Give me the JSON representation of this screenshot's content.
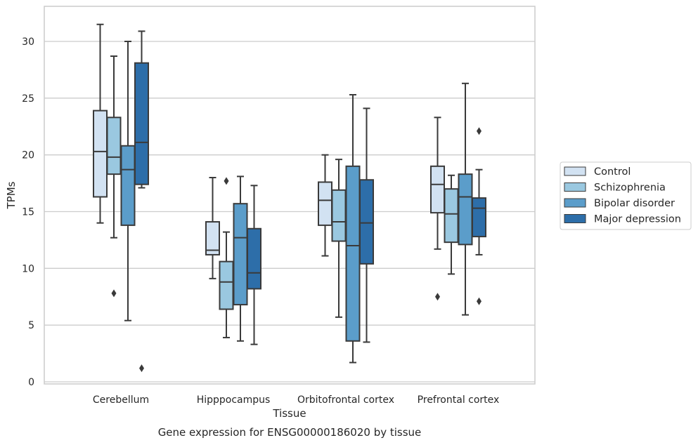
{
  "caption": "Gene expression for ENSG00000186020 by tissue",
  "chart_data": {
    "type": "box",
    "title": "",
    "xlabel": "Tissue",
    "ylabel": "TPMs",
    "ylim": [
      -0.3,
      33
    ],
    "yticks": [
      0,
      5,
      10,
      15,
      20,
      25,
      30
    ],
    "grid": "horizontal",
    "legend_position": "right",
    "categories": [
      "Cerebellum",
      "Hipppocampus",
      "Orbitofrontal cortex",
      "Prefrontal cortex"
    ],
    "series": [
      {
        "name": "Control",
        "color": "#d2e2f2",
        "boxes": [
          {
            "whislo": 14.0,
            "q1": 16.3,
            "med": 20.3,
            "q3": 23.9,
            "whishi": 31.5,
            "fliers": []
          },
          {
            "whislo": 9.1,
            "q1": 11.2,
            "med": 11.6,
            "q3": 14.1,
            "whishi": 18.0,
            "fliers": []
          },
          {
            "whislo": 11.1,
            "q1": 13.8,
            "med": 16.0,
            "q3": 17.6,
            "whishi": 20.0,
            "fliers": []
          },
          {
            "whislo": 11.7,
            "q1": 14.9,
            "med": 17.4,
            "q3": 19.0,
            "whishi": 23.3,
            "fliers": [
              7.5
            ]
          }
        ]
      },
      {
        "name": "Schizophrenia",
        "color": "#9ac8e0",
        "boxes": [
          {
            "whislo": 12.7,
            "q1": 18.3,
            "med": 19.8,
            "q3": 23.3,
            "whishi": 28.7,
            "fliers": [
              7.8
            ]
          },
          {
            "whislo": 3.9,
            "q1": 6.4,
            "med": 8.8,
            "q3": 10.6,
            "whishi": 13.2,
            "fliers": [
              17.7
            ]
          },
          {
            "whislo": 5.7,
            "q1": 12.4,
            "med": 14.1,
            "q3": 16.9,
            "whishi": 19.6,
            "fliers": []
          },
          {
            "whislo": 9.5,
            "q1": 12.3,
            "med": 14.8,
            "q3": 17.0,
            "whishi": 18.2,
            "fliers": []
          }
        ]
      },
      {
        "name": "Bipolar disorder",
        "color": "#5b9dca",
        "boxes": [
          {
            "whislo": 5.4,
            "q1": 13.8,
            "med": 18.7,
            "q3": 20.8,
            "whishi": 30.0,
            "fliers": []
          },
          {
            "whislo": 3.6,
            "q1": 6.8,
            "med": 12.7,
            "q3": 15.7,
            "whishi": 18.1,
            "fliers": []
          },
          {
            "whislo": 1.7,
            "q1": 3.6,
            "med": 12.0,
            "q3": 19.0,
            "whishi": 25.3,
            "fliers": []
          },
          {
            "whislo": 5.9,
            "q1": 12.1,
            "med": 16.3,
            "q3": 18.3,
            "whishi": 26.3,
            "fliers": []
          }
        ]
      },
      {
        "name": "Major depression",
        "color": "#2d6ea9",
        "boxes": [
          {
            "whislo": 17.1,
            "q1": 17.4,
            "med": 21.1,
            "q3": 28.1,
            "whishi": 30.9,
            "fliers": [
              1.2
            ]
          },
          {
            "whislo": 3.3,
            "q1": 8.2,
            "med": 9.6,
            "q3": 13.5,
            "whishi": 17.3,
            "fliers": []
          },
          {
            "whislo": 3.5,
            "q1": 10.4,
            "med": 14.0,
            "q3": 17.8,
            "whishi": 24.1,
            "fliers": []
          },
          {
            "whislo": 11.2,
            "q1": 12.8,
            "med": 15.3,
            "q3": 16.2,
            "whishi": 18.7,
            "fliers": [
              22.1,
              7.1
            ]
          }
        ]
      }
    ]
  }
}
